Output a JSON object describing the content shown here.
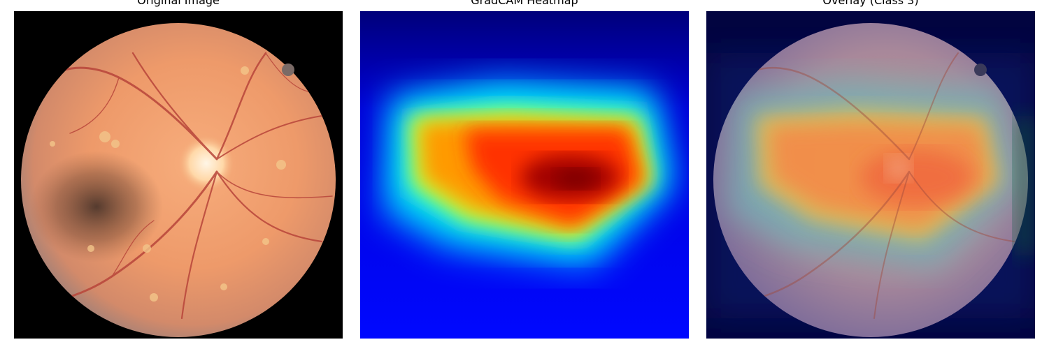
{
  "figure": {
    "panels": [
      {
        "title": "Original Image",
        "kind": "fundus-photo"
      },
      {
        "title": "GradCAM Heatmap",
        "kind": "gradcam-heatmap",
        "colormap": "jet"
      },
      {
        "title": "Overlay (Class 3)",
        "kind": "heatmap-overlay",
        "class_label": "Class 3",
        "overlay_alpha": 0.45
      }
    ]
  },
  "colors": {
    "fundus_center": "#f4a070",
    "fundus_edge": "#8a5a4a",
    "vessel": "#b8453a",
    "optic_disc": "#fff1d6",
    "exudate": "#f2c58a",
    "background": "#000000",
    "heatmap_cold": "#00008f",
    "heatmap_hot": "#800000"
  }
}
